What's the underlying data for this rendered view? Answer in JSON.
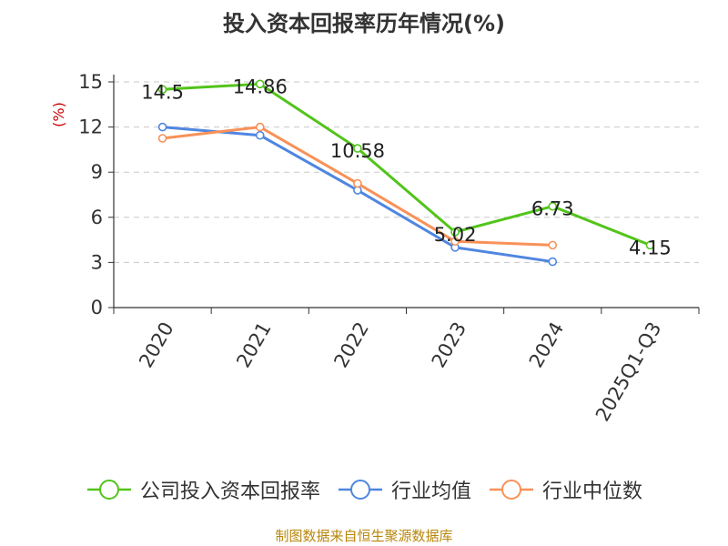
{
  "chart_data": {
    "type": "line",
    "title": "投入资本回报率历年情况(%)",
    "ylabel": "(%)",
    "xlabel": "",
    "categories": [
      "2020",
      "2021",
      "2022",
      "2023",
      "2024",
      "2025Q1-Q3"
    ],
    "y_ticks": [
      "0",
      "3",
      "6",
      "9",
      "12",
      "15"
    ],
    "ylim": [
      0,
      15
    ],
    "grid": "horizontal dashed",
    "legend_position": "bottom",
    "series": [
      {
        "name": "公司投入资本回报率",
        "color": "#52c41a",
        "values": [
          14.5,
          14.86,
          10.58,
          5.02,
          6.73,
          4.15
        ],
        "data_labels": [
          "14.5",
          "14.86",
          "10.58",
          "5.02",
          "6.73",
          "4.15"
        ]
      },
      {
        "name": "行业均值",
        "color": "#4f86e0",
        "values": [
          12.0,
          11.45,
          7.8,
          4.0,
          3.05,
          null
        ]
      },
      {
        "name": "行业中位数",
        "color": "#f89158",
        "values": [
          11.25,
          12.0,
          8.25,
          4.4,
          4.15,
          null
        ]
      }
    ]
  },
  "source_text": "制图数据来自恒生聚源数据库",
  "ylabel_color": "#cc0000",
  "source_color": "#b8860b"
}
